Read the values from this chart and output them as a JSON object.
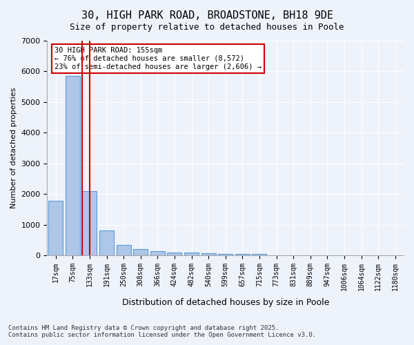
{
  "title_line1": "30, HIGH PARK ROAD, BROADSTONE, BH18 9DE",
  "title_line2": "Size of property relative to detached houses in Poole",
  "xlabel": "Distribution of detached houses by size in Poole",
  "ylabel": "Number of detached properties",
  "categories": [
    "17sqm",
    "75sqm",
    "133sqm",
    "191sqm",
    "250sqm",
    "308sqm",
    "366sqm",
    "424sqm",
    "482sqm",
    "540sqm",
    "599sqm",
    "657sqm",
    "715sqm",
    "773sqm",
    "831sqm",
    "889sqm",
    "947sqm",
    "1006sqm",
    "1064sqm",
    "1122sqm",
    "1180sqm"
  ],
  "values": [
    1780,
    5850,
    2100,
    820,
    330,
    195,
    130,
    95,
    80,
    65,
    50,
    40,
    50,
    0,
    0,
    0,
    0,
    0,
    0,
    0,
    0
  ],
  "bar_color": "#aec6e8",
  "bar_edge_color": "#5b9bd5",
  "property_line_x": 2,
  "annotation_title": "30 HIGH PARK ROAD: 155sqm",
  "annotation_line2": "← 76% of detached houses are smaller (8,572)",
  "annotation_line3": "23% of semi-detached houses are larger (2,606) →",
  "annotation_box_color": "#ffffff",
  "annotation_box_edge": "#cc0000",
  "vline_color": "#cc0000",
  "ylim": [
    0,
    7000
  ],
  "yticks": [
    0,
    1000,
    2000,
    3000,
    4000,
    5000,
    6000,
    7000
  ],
  "bg_color": "#eef3fb",
  "grid_color": "#ffffff",
  "footer_line1": "Contains HM Land Registry data © Crown copyright and database right 2025.",
  "footer_line2": "Contains public sector information licensed under the Open Government Licence v3.0."
}
